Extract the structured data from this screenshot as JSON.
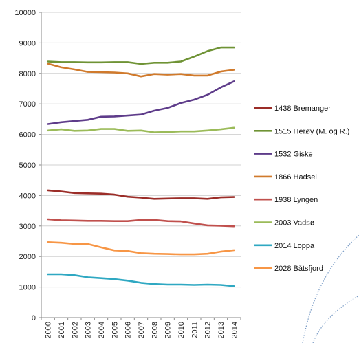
{
  "chart_data": {
    "type": "line",
    "title": "",
    "xlabel": "",
    "ylabel": "",
    "x": [
      "2000",
      "2001",
      "2002",
      "2003",
      "2004",
      "2005",
      "2006",
      "2007",
      "2008",
      "2009",
      "2010",
      "2011",
      "2012",
      "2013",
      "2014"
    ],
    "ylim": [
      0,
      10000
    ],
    "yticks": [
      "0",
      "1000",
      "2000",
      "3000",
      "4000",
      "5000",
      "6000",
      "7000",
      "8000",
      "9000",
      "10000"
    ],
    "grid": true,
    "legend_position": "right",
    "series": [
      {
        "name": "1438 Bremanger",
        "color": "#9b2d28",
        "values": [
          4170,
          4130,
          4080,
          4070,
          4060,
          4030,
          3960,
          3930,
          3890,
          3900,
          3910,
          3910,
          3890,
          3940,
          3950
        ]
      },
      {
        "name": "1515 Herøy (M. og R.)",
        "color": "#6f9335",
        "values": [
          8390,
          8370,
          8370,
          8360,
          8360,
          8370,
          8370,
          8310,
          8350,
          8350,
          8390,
          8550,
          8730,
          8850,
          8850
        ]
      },
      {
        "name": "1532 Giske",
        "color": "#5e3c8a",
        "values": [
          6340,
          6400,
          6440,
          6480,
          6580,
          6590,
          6620,
          6650,
          6780,
          6870,
          7030,
          7140,
          7300,
          7540,
          7740
        ]
      },
      {
        "name": "1866 Hadsel",
        "color": "#d07a2c",
        "values": [
          8320,
          8200,
          8130,
          8050,
          8040,
          8030,
          8000,
          7900,
          7980,
          7960,
          7980,
          7930,
          7930,
          8060,
          8120
        ]
      },
      {
        "name": "1938 Lyngen",
        "color": "#c0504d",
        "values": [
          3220,
          3190,
          3180,
          3170,
          3170,
          3160,
          3160,
          3200,
          3200,
          3160,
          3150,
          3080,
          3020,
          3010,
          2990
        ]
      },
      {
        "name": "2003 Vadsø",
        "color": "#9bbb59",
        "values": [
          6130,
          6170,
          6120,
          6130,
          6180,
          6180,
          6120,
          6130,
          6070,
          6080,
          6100,
          6100,
          6130,
          6170,
          6220
        ]
      },
      {
        "name": "2014 Loppa",
        "color": "#2fa8c2",
        "values": [
          1420,
          1420,
          1390,
          1320,
          1290,
          1260,
          1210,
          1140,
          1100,
          1080,
          1080,
          1070,
          1080,
          1070,
          1030
        ]
      },
      {
        "name": "2028 Båtsfjord",
        "color": "#f79646",
        "values": [
          2470,
          2450,
          2410,
          2410,
          2300,
          2200,
          2180,
          2110,
          2090,
          2080,
          2070,
          2070,
          2090,
          2160,
          2210
        ]
      }
    ]
  }
}
